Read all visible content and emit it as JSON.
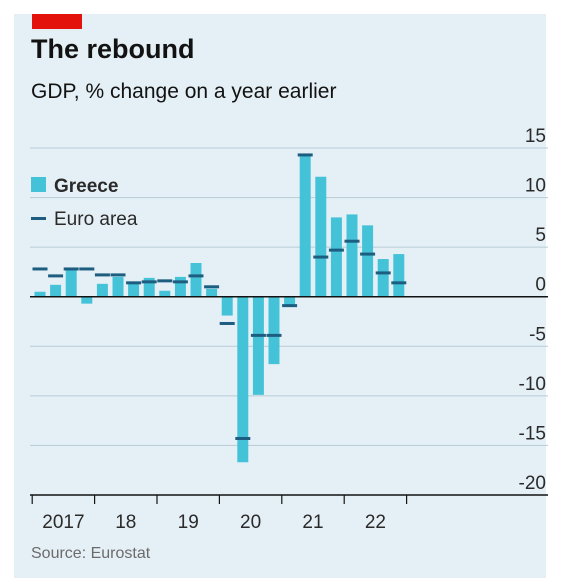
{
  "header": {
    "title": "The rebound",
    "subtitle": "GDP, % change on a year earlier"
  },
  "footer": {
    "source": "Source: Eurostat"
  },
  "colors": {
    "greece": "#44c3d8",
    "euro_area": "#1d5d80",
    "accent_red": "#e3120b",
    "panel_bg": "#e5f0f6"
  },
  "chart_data": {
    "type": "bar",
    "title": "The rebound",
    "subtitle": "GDP, % change on a year earlier",
    "xlabel": "",
    "ylabel": "",
    "ylim": [
      -20,
      15
    ],
    "yticks": [
      15,
      10,
      5,
      0,
      -5,
      -10,
      -15,
      -20
    ],
    "year_labels": [
      "2017",
      "18",
      "19",
      "20",
      "21",
      "22"
    ],
    "grid": true,
    "legend_position": "top-left",
    "categories": [
      "2017 Q1",
      "2017 Q2",
      "2017 Q3",
      "2017 Q4",
      "2018 Q1",
      "2018 Q2",
      "2018 Q3",
      "2018 Q4",
      "2019 Q1",
      "2019 Q2",
      "2019 Q3",
      "2019 Q4",
      "2020 Q1",
      "2020 Q2",
      "2020 Q3",
      "2020 Q4",
      "2021 Q1",
      "2021 Q2",
      "2021 Q3",
      "2021 Q4",
      "2022 Q1",
      "2022 Q2",
      "2022 Q3",
      "2022 Q4"
    ],
    "series": [
      {
        "name": "Greece",
        "mark": "bar",
        "values": [
          0.5,
          1.2,
          2.8,
          -0.7,
          1.3,
          2.0,
          1.5,
          1.9,
          0.6,
          2.0,
          3.4,
          0.8,
          -1.9,
          -16.7,
          -9.9,
          -6.8,
          -0.8,
          14.3,
          12.1,
          8.0,
          8.3,
          7.2,
          3.8,
          4.3
        ]
      },
      {
        "name": "Euro area",
        "mark": "dash",
        "values": [
          2.8,
          2.1,
          2.8,
          2.8,
          2.2,
          2.2,
          1.4,
          1.5,
          1.6,
          1.5,
          2.1,
          1.0,
          -2.7,
          -14.3,
          -3.9,
          -3.9,
          -0.9,
          14.3,
          4.0,
          4.7,
          5.6,
          4.3,
          2.4,
          1.4
        ]
      }
    ]
  }
}
